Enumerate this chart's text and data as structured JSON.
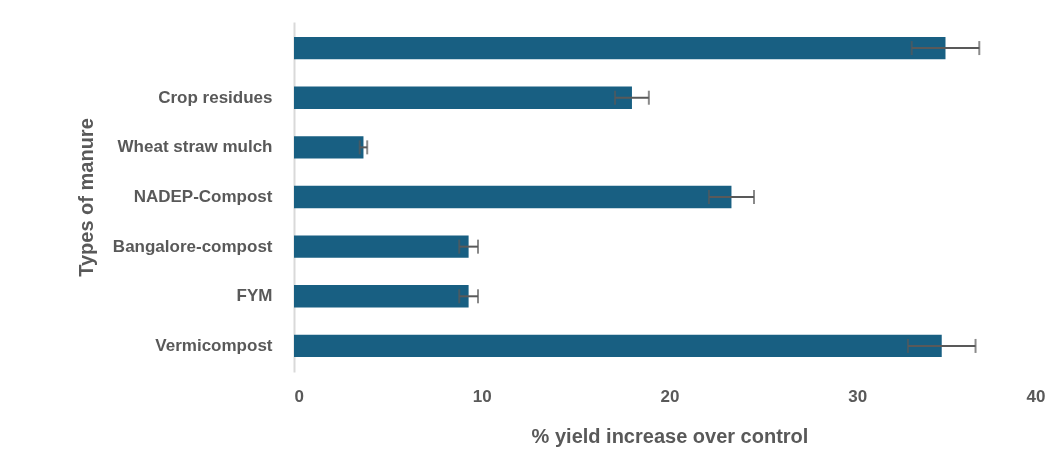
{
  "chart_data": {
    "type": "bar",
    "orientation": "horizontal",
    "xlabel": "% yield increase over control",
    "ylabel": "Types of manure",
    "categories": [
      null,
      "Crop residues",
      "Wheat straw mulch",
      "NADEP-Compost",
      "Bangalore-compost",
      "FYM",
      "Vermicompost"
    ],
    "values": [
      34.7,
      18.0,
      3.7,
      23.3,
      9.3,
      9.3,
      34.5
    ],
    "errors": [
      1.8,
      0.9,
      0.2,
      1.2,
      0.5,
      0.5,
      1.8
    ],
    "color": "#185f82",
    "xlim": [
      0,
      40
    ],
    "xticks": [
      0,
      10,
      20,
      30,
      40
    ],
    "grid": false
  }
}
